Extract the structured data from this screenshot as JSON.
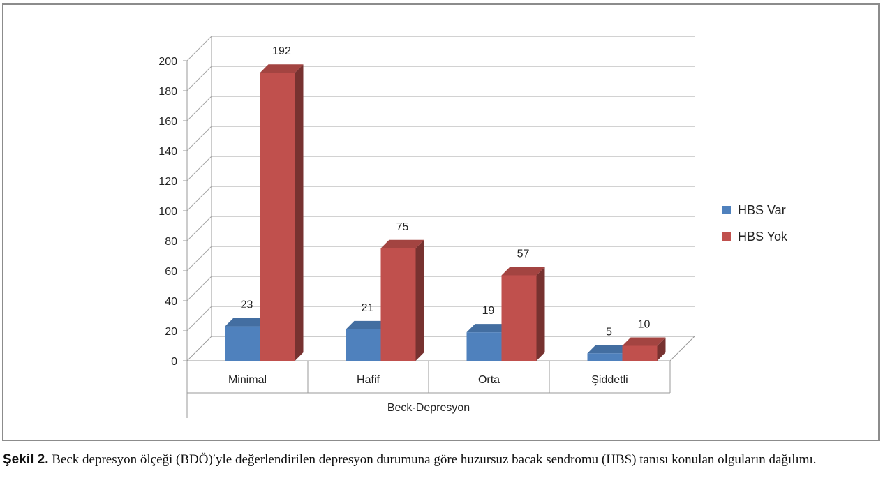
{
  "chart_data": {
    "type": "bar",
    "title": "",
    "xlabel": "Beck-Depresyon",
    "ylabel": "",
    "ylim": [
      0,
      200
    ],
    "yticks": [
      0,
      20,
      40,
      60,
      80,
      100,
      120,
      140,
      160,
      180,
      200
    ],
    "categories": [
      "Minimal",
      "Hafif",
      "Orta",
      "Şiddetli"
    ],
    "series": [
      {
        "name": "HBS Var",
        "values": [
          23,
          21,
          19,
          5
        ],
        "color": "#4f81bd"
      },
      {
        "name": "HBS Yok",
        "values": [
          192,
          75,
          57,
          10
        ],
        "color": "#c0504d"
      }
    ],
    "grid": true,
    "legend_position": "right",
    "style": "3d-clustered-column"
  },
  "caption": {
    "label": "Şekil 2.",
    "text": " Beck depresyon ölçeği (BDÖ)ʹyle değerlendirilen depresyon durumuna göre huzursuz bacak sendromu (HBS) tanısı konulan olguların dağılımı."
  }
}
